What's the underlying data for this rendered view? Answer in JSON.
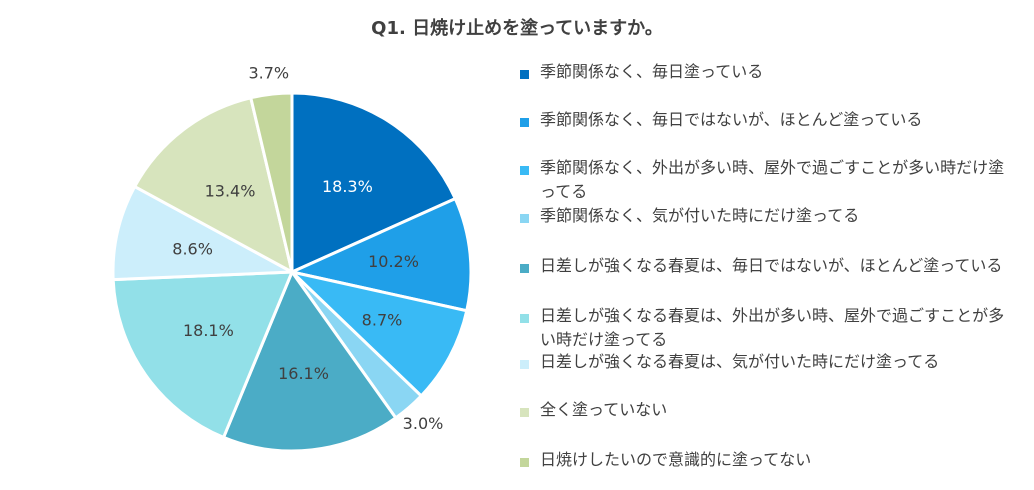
{
  "chart_data": {
    "type": "pie",
    "title": "Q1. 日焼け止めを塗っていますか。",
    "slices": [
      {
        "label": "季節関係なく、毎日塗っている",
        "value": 18.3,
        "value_label": "18.3%",
        "color": "#0070C0"
      },
      {
        "label": "季節関係なく、毎日ではないが、ほとんど塗っている",
        "value": 10.2,
        "value_label": "10.2%",
        "color": "#1F9FE8"
      },
      {
        "label": "季節関係なく、外出が多い時、屋外で過ごすことが多い時だけ塗ってる",
        "value": 8.7,
        "value_label": "8.7%",
        "color": "#39BAF5"
      },
      {
        "label": "季節関係なく、気が付いた時にだけ塗ってる",
        "value": 3.0,
        "value_label": "3.0%",
        "color": "#8AD6F3"
      },
      {
        "label": "日差しが強くなる春夏は、毎日ではないが、ほとんど塗っている",
        "value": 16.1,
        "value_label": "16.1%",
        "color": "#4BACC6"
      },
      {
        "label": "日差しが強くなる春夏は、外出が多い時、屋外で過ごすことが多い時だけ塗ってる",
        "value": 18.1,
        "value_label": "18.1%",
        "color": "#92E0E8"
      },
      {
        "label": "日差しが強くなる春夏は、気が付いた時にだけ塗ってる",
        "value": 8.6,
        "value_label": "8.6%",
        "color": "#CCEEFB"
      },
      {
        "label": "全く塗っていない",
        "value": 13.4,
        "value_label": "13.4%",
        "color": "#D7E4BD"
      },
      {
        "label": "日焼けしたいので意識的に塗ってない",
        "value": 3.7,
        "value_label": "3.7%",
        "color": "#C3D69B"
      }
    ],
    "legend_position": "right"
  }
}
